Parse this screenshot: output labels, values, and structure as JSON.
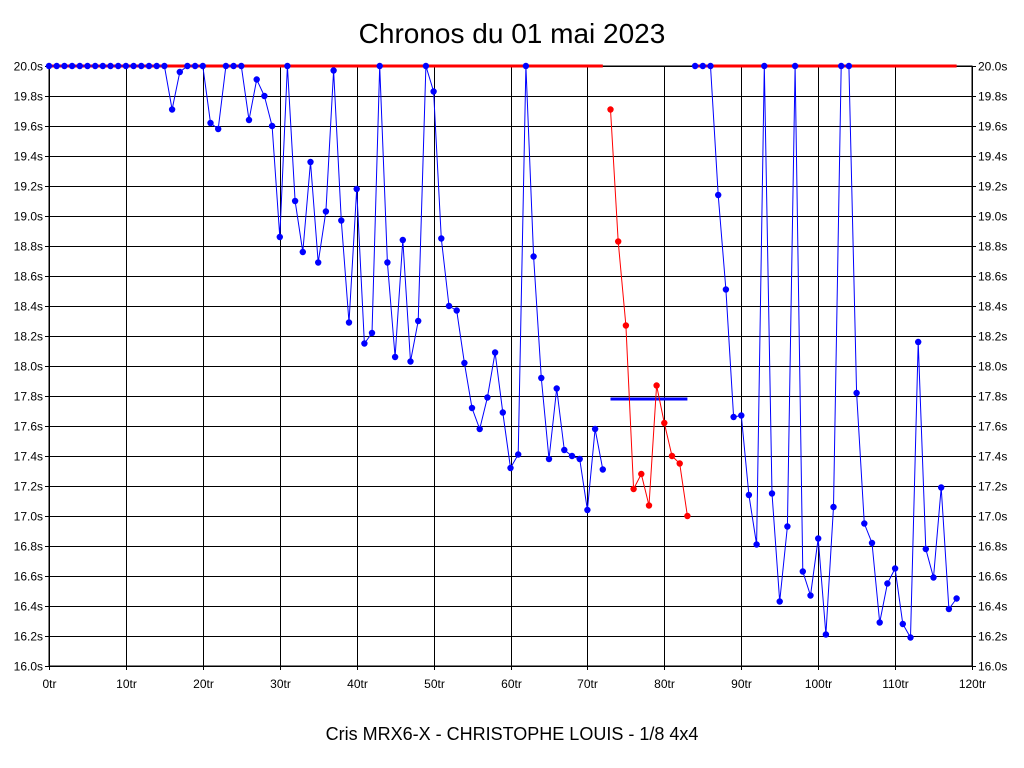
{
  "chart_data": {
    "type": "line",
    "title": "Chronos du 01 mai 2023",
    "footer": "Cris MRX6-X - CHRISTOPHE LOUIS - 1/8 4x4",
    "xlim": [
      0,
      120
    ],
    "ylim": [
      16.0,
      20.0
    ],
    "x_ticks": [
      0,
      10,
      20,
      30,
      40,
      50,
      60,
      70,
      80,
      90,
      100,
      110,
      120
    ],
    "x_tick_labels": [
      "0tr",
      "10tr",
      "20tr",
      "30tr",
      "40tr",
      "50tr",
      "60tr",
      "70tr",
      "80tr",
      "90tr",
      "100tr",
      "110tr",
      "120tr"
    ],
    "y_ticks": [
      16.0,
      16.2,
      16.4,
      16.6,
      16.8,
      17.0,
      17.2,
      17.4,
      17.6,
      17.8,
      18.0,
      18.2,
      18.4,
      18.6,
      18.8,
      19.0,
      19.2,
      19.4,
      19.6,
      19.8,
      20.0
    ],
    "y_tick_labels": [
      "16.0s",
      "16.2s",
      "16.4s",
      "16.6s",
      "16.8s",
      "17.0s",
      "17.2s",
      "17.4s",
      "17.6s",
      "17.8s",
      "18.0s",
      "18.2s",
      "18.4s",
      "18.6s",
      "18.8s",
      "19.0s",
      "19.2s",
      "19.4s",
      "19.6s",
      "19.8s",
      "20.0s"
    ],
    "grid": true,
    "colors": {
      "series1": "#0000ff",
      "series2": "#ff0000",
      "series3": "#0000ff",
      "cap_line": "#ff0000",
      "average_line": "#0000ff",
      "grid": "#000000"
    },
    "series": [
      {
        "x": [
          0,
          1,
          2,
          3,
          4,
          5,
          6,
          7,
          8,
          9,
          10,
          11,
          12,
          13,
          14,
          15,
          16,
          17,
          18,
          19,
          20,
          21,
          22,
          23,
          24,
          25,
          26,
          27,
          28,
          29,
          30,
          31,
          32,
          33,
          34,
          35,
          36,
          37,
          38,
          39,
          40,
          41,
          42,
          43,
          44,
          45,
          46,
          47,
          48,
          49,
          50,
          51,
          52,
          53,
          54,
          55,
          56,
          57,
          58,
          59,
          60,
          61,
          62,
          63,
          64,
          65,
          66,
          67,
          68,
          69,
          70,
          71,
          72
        ],
        "y": [
          20.0,
          20.0,
          20.0,
          20.0,
          20.0,
          20.0,
          20.0,
          20.0,
          20.0,
          20.0,
          20.0,
          20.0,
          20.0,
          20.0,
          20.0,
          20.0,
          19.71,
          19.96,
          20.0,
          20.0,
          20.0,
          19.62,
          19.58,
          20.0,
          20.0,
          20.0,
          19.64,
          19.91,
          19.8,
          19.6,
          18.86,
          20.0,
          19.1,
          18.76,
          19.36,
          18.69,
          19.03,
          19.97,
          18.97,
          18.29,
          19.18,
          18.15,
          18.22,
          20.0,
          18.69,
          18.06,
          18.84,
          18.03,
          18.3,
          20.0,
          19.83,
          18.85,
          18.4,
          18.37,
          18.02,
          17.72,
          17.58,
          17.79,
          18.09,
          17.69,
          17.32,
          17.41,
          20.0,
          18.73,
          17.92,
          17.38,
          17.85,
          17.44,
          17.4,
          17.38,
          17.04,
          17.58,
          17.31
        ]
      },
      {
        "x": [
          73,
          74,
          75,
          76,
          77,
          78,
          79,
          80,
          81,
          82,
          83
        ],
        "y": [
          19.71,
          18.83,
          18.27,
          17.18,
          17.28,
          17.07,
          17.87,
          17.62,
          17.4,
          17.35,
          17.0
        ]
      },
      {
        "x": [
          84,
          85,
          86,
          87,
          88,
          89,
          90,
          91,
          92,
          93,
          94,
          95,
          96,
          97,
          98,
          99,
          100,
          101,
          102,
          103,
          104,
          105,
          106,
          107,
          108,
          109,
          110,
          111,
          112,
          113,
          114,
          115,
          116,
          117,
          118
        ],
        "y": [
          20.0,
          20.0,
          20.0,
          19.14,
          18.51,
          17.66,
          17.67,
          17.14,
          16.81,
          20.0,
          17.15,
          16.43,
          16.93,
          20.0,
          16.63,
          16.47,
          16.85,
          16.21,
          17.06,
          20.0,
          20.0,
          17.82,
          16.95,
          16.82,
          16.29,
          16.55,
          16.65,
          16.28,
          16.19,
          18.16,
          16.78,
          16.59,
          17.19,
          16.38,
          16.45
        ]
      }
    ],
    "cap_lines": [
      {
        "x": [
          0,
          72
        ],
        "y": 20.0
      },
      {
        "x": [
          84,
          118
        ],
        "y": 20.0
      }
    ],
    "average_line": {
      "x": [
        73,
        83
      ],
      "y": 17.78
    }
  }
}
